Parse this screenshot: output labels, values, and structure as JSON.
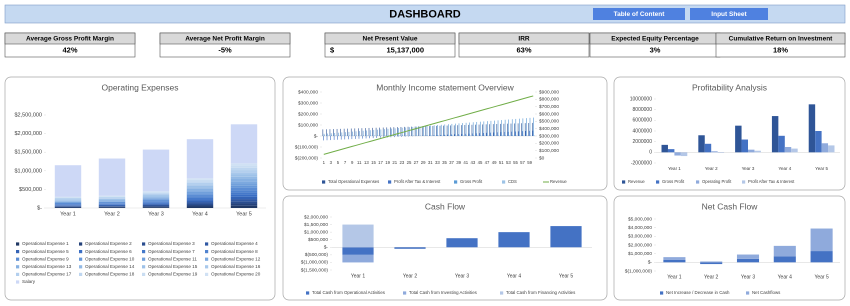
{
  "header": {
    "title": "DASHBOARD",
    "buttons": [
      "Table of Content",
      "Input Sheet"
    ]
  },
  "kpis": [
    {
      "label": "Average Gross Profit Margin",
      "value": "42%"
    },
    {
      "label": "Average Net Profit Margin",
      "value": "-5%"
    },
    {
      "label": "Net Present Value",
      "currency": "$",
      "value": "15,137,000"
    },
    {
      "label": "IRR",
      "value": "63%"
    },
    {
      "label": "Expected Equity Percentage",
      "value": "3%"
    },
    {
      "label": "Cumulative Return on Investment",
      "value": "18%"
    }
  ],
  "chart_data": [
    {
      "type": "stacked_bar",
      "title": "Operating Expenses",
      "legend": "bottom",
      "categories": [
        "Year 1",
        "Year 2",
        "Year 3",
        "Year 4",
        "Year 5"
      ],
      "ylim": [
        0,
        2500000
      ],
      "yticks": [
        {
          "value": 0,
          "label": "$-"
        },
        {
          "value": 500000,
          "label": "$500,000"
        },
        {
          "value": 1000000,
          "label": "$1,000,000"
        },
        {
          "value": 1500000,
          "label": "$1,500,000"
        },
        {
          "value": 2000000,
          "label": "$2,000,000"
        },
        {
          "value": 2500000,
          "label": "$2,500,000"
        }
      ],
      "series": [
        {
          "name": "Operational Expense 1",
          "color": "#203864",
          "values": [
            15000,
            16500,
            22500,
            40000,
            60000
          ]
        },
        {
          "name": "Operational Expense 2",
          "color": "#25427a",
          "values": [
            15000,
            16500,
            22500,
            40000,
            60000
          ]
        },
        {
          "name": "Operational Expense 3",
          "color": "#2a4d8f",
          "values": [
            15000,
            16500,
            22500,
            40000,
            60000
          ]
        },
        {
          "name": "Operational Expense 4",
          "color": "#2f58a3",
          "values": [
            15000,
            16500,
            22500,
            40000,
            60000
          ]
        },
        {
          "name": "Operational Expense 5",
          "color": "#3463b5",
          "values": [
            15000,
            16500,
            22500,
            40000,
            60000
          ]
        },
        {
          "name": "Operational Expense 6",
          "color": "#3a6ec4",
          "values": [
            15000,
            16500,
            22500,
            40000,
            60000
          ]
        },
        {
          "name": "Operational Expense 7",
          "color": "#4579ca",
          "values": [
            15000,
            16500,
            22500,
            40000,
            60000
          ]
        },
        {
          "name": "Operational Expense 8",
          "color": "#5083cf",
          "values": [
            15000,
            16500,
            22500,
            40000,
            60000
          ]
        },
        {
          "name": "Operational Expense 9",
          "color": "#5b8dd4",
          "values": [
            15000,
            16500,
            22500,
            40000,
            60000
          ]
        },
        {
          "name": "Operational Expense 10",
          "color": "#6697d8",
          "values": [
            15000,
            16500,
            22500,
            40000,
            60000
          ]
        },
        {
          "name": "Operational Expense 11",
          "color": "#71a0db",
          "values": [
            15000,
            16500,
            22500,
            40000,
            60000
          ]
        },
        {
          "name": "Operational Expense 12",
          "color": "#7ca9df",
          "values": [
            15000,
            16500,
            22500,
            40000,
            60000
          ]
        },
        {
          "name": "Operational Expense 13",
          "color": "#87b1e2",
          "values": [
            15000,
            16500,
            22500,
            40000,
            60000
          ]
        },
        {
          "name": "Operational Expense 14",
          "color": "#92b9e5",
          "values": [
            15000,
            16500,
            22500,
            40000,
            60000
          ]
        },
        {
          "name": "Operational Expense 15",
          "color": "#9dc1e8",
          "values": [
            15000,
            16500,
            22500,
            40000,
            60000
          ]
        },
        {
          "name": "Operational Expense 16",
          "color": "#a8c8eb",
          "values": [
            15000,
            16500,
            22500,
            40000,
            60000
          ]
        },
        {
          "name": "Operational Expense 17",
          "color": "#b3cfee",
          "values": [
            15000,
            16500,
            22500,
            40000,
            60000
          ]
        },
        {
          "name": "Operational Expense 18",
          "color": "#bed6f0",
          "values": [
            15000,
            16500,
            22500,
            40000,
            60000
          ]
        },
        {
          "name": "Operational Expense 19",
          "color": "#c9ddf2",
          "values": [
            15000,
            16500,
            22500,
            40000,
            60000
          ]
        },
        {
          "name": "Operational Expense 20",
          "color": "#d0e1f4",
          "values": [
            15000,
            16500,
            22500,
            40000,
            60000
          ]
        },
        {
          "name": "Salary",
          "color": "#cdd8f6",
          "values": [
            850000,
            1000000,
            1120000,
            1050000,
            1050000
          ]
        }
      ]
    },
    {
      "type": "combo",
      "title": "Monthly Income statement Overview",
      "legend": "bottom",
      "categories": [
        1,
        null,
        3,
        null,
        5,
        null,
        7,
        null,
        9,
        null,
        11,
        null,
        13,
        null,
        15,
        null,
        17,
        null,
        19,
        null,
        21,
        null,
        23,
        null,
        25,
        null,
        27,
        null,
        29,
        null,
        31,
        null,
        33,
        null,
        35,
        null,
        37,
        null,
        39,
        null,
        41,
        null,
        43,
        null,
        45,
        null,
        47,
        null,
        49,
        null,
        51,
        null,
        53,
        null,
        55,
        null,
        57,
        null,
        59,
        null
      ],
      "ylim": [
        -200000,
        400000
      ],
      "yticks": [
        {
          "value": -200000,
          "label": "$(200,000)"
        },
        {
          "value": -100000,
          "label": "$(100,000)"
        },
        {
          "value": 0,
          "label": "$-"
        },
        {
          "value": 100000,
          "label": "$100,000"
        },
        {
          "value": 200000,
          "label": "$200,000"
        },
        {
          "value": 300000,
          "label": "$300,000"
        },
        {
          "value": 400000,
          "label": "$400,000"
        }
      ],
      "y2lim": [
        0,
        900000
      ],
      "y2ticks": [
        {
          "value": 0,
          "label": "$0"
        },
        {
          "value": 100000,
          "label": "$100,000"
        },
        {
          "value": 200000,
          "label": "$200,000"
        },
        {
          "value": 300000,
          "label": "$300,000"
        },
        {
          "value": 400000,
          "label": "$400,000"
        },
        {
          "value": 500000,
          "label": "$500,000"
        },
        {
          "value": 600000,
          "label": "$600,000"
        },
        {
          "value": 700000,
          "label": "$700,000"
        },
        {
          "value": 800000,
          "label": "$800,000"
        },
        {
          "value": 900000,
          "label": "$900,000"
        }
      ],
      "series": [
        {
          "name": "Total Operational Expenses",
          "kind": "bar",
          "color": "#2f5597",
          "values": [
            60000,
            61000,
            62000,
            63000,
            64000,
            65000,
            66000,
            67000,
            68000,
            69000,
            70000,
            71000,
            72000,
            73000,
            74000,
            75000,
            76000,
            77000,
            78000,
            79000,
            80000,
            81000,
            82000,
            83000,
            84000,
            85000,
            86000,
            87000,
            88000,
            89000,
            90000,
            91000,
            92000,
            93000,
            94000,
            95000,
            96000,
            97000,
            98000,
            99000,
            100000,
            101000,
            102000,
            103000,
            104000,
            105000,
            106000,
            107000,
            108000,
            109000,
            110000,
            111000,
            112000,
            113000,
            114000,
            115000,
            116000,
            117000,
            118000,
            119000
          ]
        },
        {
          "name": "Profit After Tax & Interest",
          "kind": "bar",
          "color": "#4472c4",
          "values": [
            -40000,
            -38500,
            -37000,
            -35500,
            -34000,
            -32500,
            -31000,
            -29500,
            -28000,
            -26500,
            -25000,
            -23500,
            -22000,
            -20500,
            -19000,
            -17500,
            -16000,
            -14500,
            -13000,
            -11500,
            -10000,
            -8500,
            -7000,
            -5500,
            -4000,
            -2500,
            -1000,
            500,
            2000,
            3500,
            5000,
            6500,
            8000,
            9500,
            11000,
            12500,
            14000,
            15500,
            17000,
            18500,
            20000,
            21500,
            23000,
            24500,
            26000,
            27500,
            29000,
            30500,
            32000,
            33500,
            35000,
            36500,
            38000,
            39500,
            41000,
            42500,
            44000,
            45500,
            47000,
            48500
          ]
        },
        {
          "name": "Gross Profit",
          "kind": "bar",
          "color": "#5b9bd5",
          "values": [
            20000,
            22500,
            25000,
            27500,
            30000,
            32500,
            35000,
            37500,
            40000,
            42500,
            45000,
            47500,
            50000,
            52500,
            55000,
            57500,
            60000,
            62500,
            65000,
            67500,
            70000,
            72500,
            75000,
            77500,
            80000,
            82500,
            85000,
            87500,
            90000,
            92500,
            95000,
            97500,
            100000,
            102500,
            105000,
            107500,
            110000,
            112500,
            115000,
            117500,
            120000,
            122500,
            125000,
            127500,
            130000,
            132500,
            135000,
            137500,
            140000,
            142500,
            145000,
            147500,
            150000,
            152500,
            155000,
            157500,
            160000,
            162500,
            165000,
            167500
          ]
        },
        {
          "name": "CDS",
          "kind": "bar",
          "color": "#9dc3e6",
          "values": [
            8000,
            8000,
            8000,
            8000,
            8000,
            8000,
            8000,
            8000,
            8000,
            8000,
            8000,
            8000,
            8000,
            8000,
            8000,
            8000,
            8000,
            8000,
            8000,
            8000,
            8000,
            8000,
            8000,
            8000,
            8000,
            8000,
            8000,
            8000,
            8000,
            8000,
            8000,
            8000,
            8000,
            8000,
            8000,
            8000,
            8000,
            8000,
            8000,
            8000,
            8000,
            8000,
            8000,
            8000,
            8000,
            8000,
            8000,
            8000,
            8000,
            8000,
            8000,
            8000,
            8000,
            8000,
            8000,
            8000,
            8000,
            8000,
            8000,
            8000
          ]
        },
        {
          "name": "Revenue",
          "kind": "line",
          "axis": "y2",
          "color": "#70ad47",
          "values": [
            50000,
            63500,
            77000,
            90500,
            104000,
            117500,
            131000,
            144500,
            158000,
            171500,
            185000,
            198500,
            212000,
            225500,
            239000,
            252500,
            266000,
            279500,
            293000,
            306500,
            320000,
            333500,
            347000,
            360500,
            374000,
            387500,
            401000,
            414500,
            428000,
            441500,
            455000,
            468500,
            482000,
            495500,
            509000,
            522500,
            536000,
            549500,
            563000,
            576500,
            590000,
            603500,
            617000,
            630500,
            644000,
            657500,
            671000,
            684500,
            698000,
            711500,
            725000,
            738500,
            752000,
            765500,
            779000,
            792500,
            806000,
            819500,
            833000,
            846500
          ]
        }
      ]
    },
    {
      "type": "bar",
      "title": "Profitability Analysis",
      "legend": "bottom",
      "categories": [
        "Year 1",
        "Year 2",
        "Year 3",
        "Year 4",
        "Year 5"
      ],
      "ylim": [
        -2000000,
        10000000
      ],
      "yticks": [
        -2000000,
        0,
        2000000,
        4000000,
        6000000,
        8000000,
        10000000
      ],
      "series": [
        {
          "name": "Revenue",
          "color": "#2f5597",
          "values": [
            1400000,
            3200000,
            5000000,
            6800000,
            9000000
          ]
        },
        {
          "name": "Gross Profit",
          "color": "#4472c4",
          "values": [
            600000,
            1600000,
            2400000,
            3100000,
            4000000
          ]
        },
        {
          "name": "Operating Profit",
          "color": "#8faadc",
          "values": [
            -600000,
            200000,
            500000,
            1000000,
            1700000
          ]
        },
        {
          "name": "Profit After Tax & Interest",
          "color": "#b4c7e7",
          "values": [
            -700000,
            -100000,
            300000,
            700000,
            1300000
          ]
        }
      ]
    },
    {
      "type": "stacked_bar",
      "title": "Cash Flow",
      "legend": "bottom",
      "categories": [
        "Year 1",
        "Year 2",
        "Year 3",
        "Year 4",
        "Year 5"
      ],
      "ylim": [
        -1500000,
        2000000
      ],
      "yticks": [
        {
          "value": -1500000,
          "label": "$(1,500,000)"
        },
        {
          "value": -1000000,
          "label": "$(1,000,000)"
        },
        {
          "value": -500000,
          "label": "$(500,000)"
        },
        {
          "value": 0,
          "label": "$-"
        },
        {
          "value": 500000,
          "label": "$500,000"
        },
        {
          "value": 1000000,
          "label": "$1,000,000"
        },
        {
          "value": 1500000,
          "label": "$1,500,000"
        },
        {
          "value": 2000000,
          "label": "$2,000,000"
        }
      ],
      "series": [
        {
          "name": "Total Cash from Operational Activities",
          "color": "#4472c4",
          "values": [
            -500000,
            -100000,
            600000,
            1000000,
            1400000
          ]
        },
        {
          "name": "Total Cash from Investing Activities",
          "color": "#8faadc",
          "values": [
            -500000,
            0,
            0,
            0,
            0
          ]
        },
        {
          "name": "Total Cash from Financing Activities",
          "color": "#b4c7e7",
          "values": [
            1500000,
            0,
            0,
            0,
            0
          ]
        }
      ]
    },
    {
      "type": "stacked_bar",
      "title": "Net Cash Flow",
      "legend": "bottom",
      "categories": [
        "Year 1",
        "Year 2",
        "Year 3",
        "Year 4",
        "Year 5"
      ],
      "ylim": [
        -1000000,
        5000000
      ],
      "yticks": [
        {
          "value": -1000000,
          "label": "$(1,000,000)"
        },
        {
          "value": 0,
          "label": "$-"
        },
        {
          "value": 1000000,
          "label": "$1,000,000"
        },
        {
          "value": 2000000,
          "label": "$2,000,000"
        },
        {
          "value": 3000000,
          "label": "$3,000,000"
        },
        {
          "value": 4000000,
          "label": "$4,000,000"
        },
        {
          "value": 5000000,
          "label": "$5,000,000"
        }
      ],
      "series": [
        {
          "name": "Net Increase / Decrease in Cash",
          "color": "#4472c4",
          "values": [
            300000,
            -200000,
            400000,
            700000,
            1300000
          ]
        },
        {
          "name": "Net Cashflows",
          "color": "#8faadc",
          "values": [
            300000,
            100000,
            500000,
            1200000,
            2600000
          ]
        }
      ]
    }
  ]
}
